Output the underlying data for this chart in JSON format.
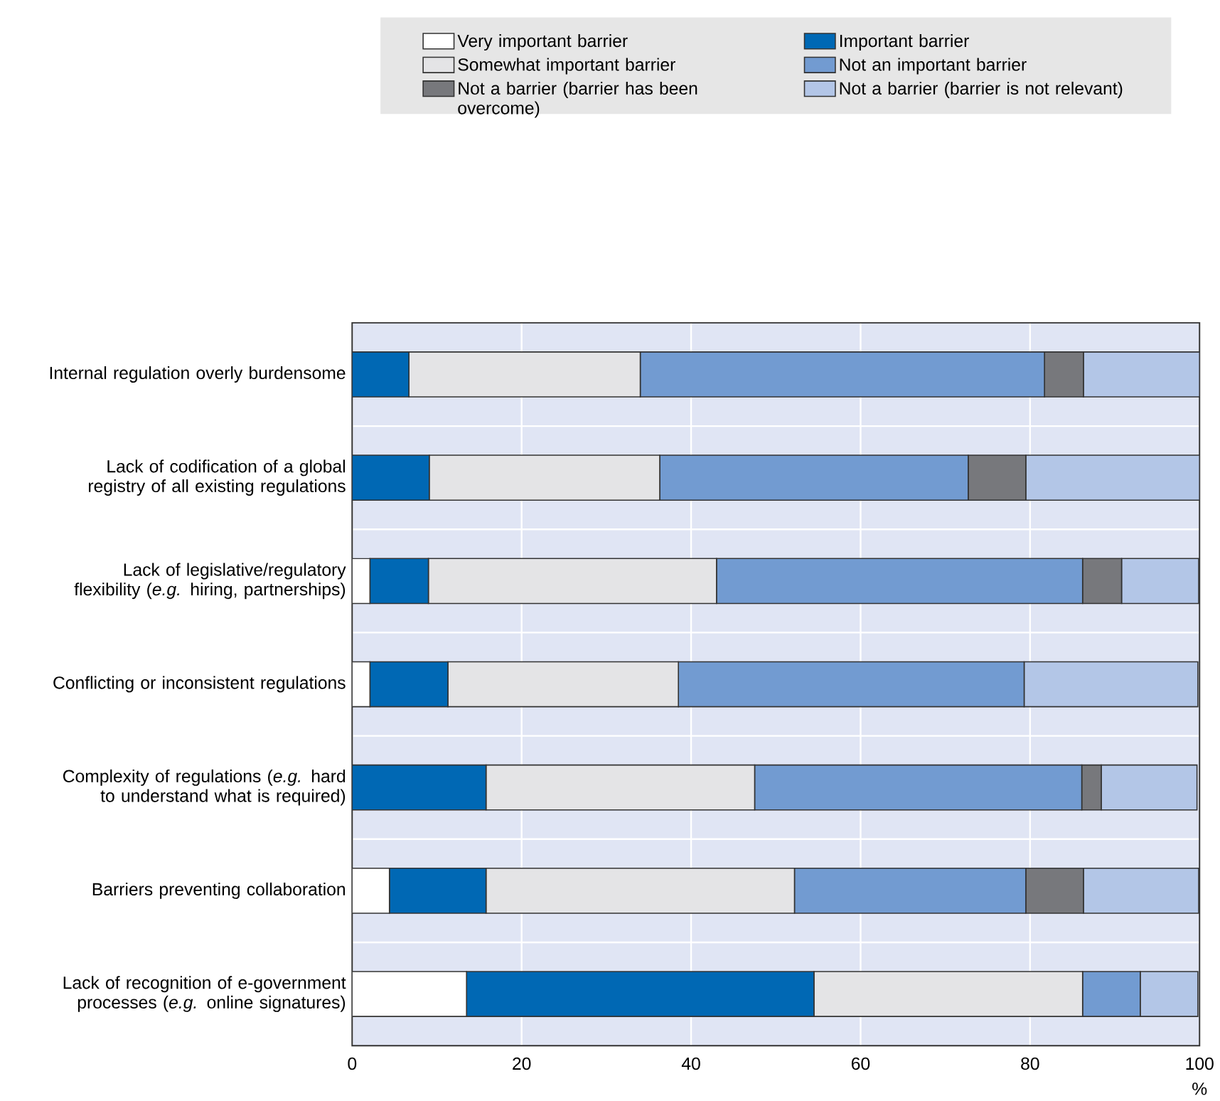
{
  "chart_data": {
    "type": "bar",
    "orientation": "horizontal",
    "stacked": true,
    "categories": [
      "Internal regulation overly burdensome",
      "Lack of codification of a global registry of all existing regulations",
      "Lack of legislative/regulatory flexibility (*e.g.* hiring, partnerships)",
      "Conflicting or inconsistent regulations",
      "Complexity of regulations (*e.g.* hard to understand what is required)",
      "Barriers preventing collaboration",
      "Lack of recognition of e-government processes (*e.g.* online signatures)"
    ],
    "series": [
      {
        "name": "Very important barrier",
        "color": "#ffffff",
        "values": [
          0,
          0,
          2.1,
          2.1,
          0,
          4.4,
          13.5
        ]
      },
      {
        "name": "Important barrier",
        "color": "#0068b4",
        "values": [
          6.7,
          9.1,
          6.9,
          9.2,
          15.8,
          11.4,
          41.0
        ]
      },
      {
        "name": "Somewhat important barrier",
        "color": "#e4e4e6",
        "values": [
          27.3,
          27.2,
          34.0,
          27.2,
          31.7,
          36.4,
          31.7
        ]
      },
      {
        "name": "Not an important barrier",
        "color": "#729bd1",
        "values": [
          47.7,
          36.4,
          43.2,
          40.8,
          38.6,
          27.3,
          6.8
        ]
      },
      {
        "name": "Not a barrier (barrier has been overcome)",
        "color": "#77787c",
        "values": [
          4.6,
          6.8,
          4.6,
          0,
          2.3,
          6.8,
          0
        ]
      },
      {
        "name": "Not a barrier (barrier is not relevant)",
        "color": "#b3c6e7",
        "values": [
          13.7,
          20.5,
          9.1,
          20.5,
          11.3,
          13.6,
          6.8
        ]
      }
    ],
    "xlim": [
      0,
      100
    ],
    "xticks": [
      0,
      20,
      40,
      60,
      80,
      100
    ],
    "xlabel": "%",
    "grid": true,
    "legend": "top"
  }
}
